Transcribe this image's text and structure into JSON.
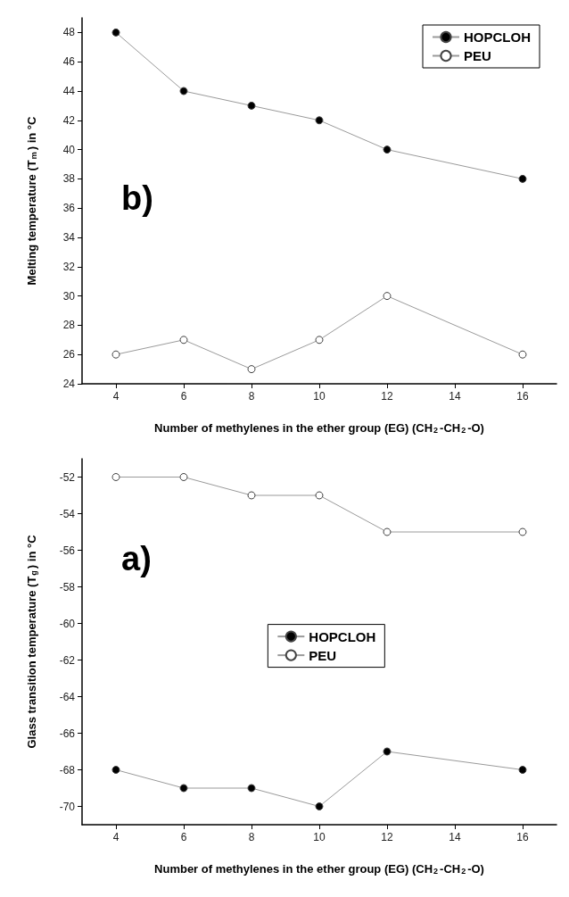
{
  "chart_data": [
    {
      "type": "line",
      "xlabel": "Number of methylenes in the ether group (EG) (CH$_{2}$-CH$_{2}$-O)",
      "ylabel": "Melting temperature (T$_{m}$) in °C",
      "annotations": [
        "b)"
      ],
      "x": [
        4,
        6,
        8,
        10,
        12,
        16
      ],
      "xlim": [
        3,
        17
      ],
      "xticks": [
        4,
        6,
        8,
        10,
        12,
        14,
        16
      ],
      "ylim": [
        24,
        49
      ],
      "yticks": [
        24,
        26,
        28,
        30,
        32,
        34,
        36,
        38,
        40,
        42,
        44,
        46,
        48
      ],
      "series": [
        {
          "name": "HOPCLOH",
          "color": "#000000",
          "values": [
            48,
            44,
            43,
            42,
            40,
            38
          ]
        },
        {
          "name": "PEU",
          "color": "#ffffff",
          "values": [
            26,
            27,
            25,
            27,
            30,
            26
          ]
        }
      ],
      "marker": "circle",
      "line_style": "solid",
      "legend": "top right",
      "grid": false
    },
    {
      "type": "line",
      "xlabel": "Number of methylenes in the ether group (EG) (CH$_{2}$-CH$_{2}$-O)",
      "ylabel": "Glass transition temperature (T$_{g}$) in °C",
      "annotations": [
        "a)"
      ],
      "x": [
        4,
        6,
        8,
        10,
        12,
        16
      ],
      "xlim": [
        3,
        17
      ],
      "xticks": [
        4,
        6,
        8,
        10,
        12,
        14,
        16
      ],
      "ylim": [
        -71,
        -51
      ],
      "yticks": [
        -70,
        -68,
        -66,
        -64,
        -62,
        -60,
        -58,
        -56,
        -54,
        -52
      ],
      "series": [
        {
          "name": "HOPCLOH",
          "color": "#000000",
          "values": [
            -68,
            -69,
            -69,
            -70,
            -67,
            -68
          ]
        },
        {
          "name": "PEU",
          "color": "#ffffff",
          "values": [
            -52,
            -52,
            -53,
            -53,
            -55,
            -55
          ]
        }
      ],
      "marker": "circle",
      "line_style": "solid",
      "legend": "center",
      "grid": false
    }
  ]
}
